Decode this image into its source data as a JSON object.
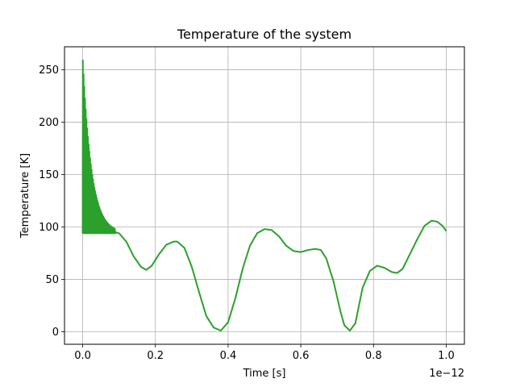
{
  "chart_data": {
    "type": "line",
    "title": "Temperature of the system",
    "xlabel": "Time [s]",
    "ylabel": "Temperature [K]",
    "x_offset_label": "1e−12",
    "xlim": [
      -0.05,
      1.05
    ],
    "ylim": [
      -12,
      272
    ],
    "x_ticks": [
      0.0,
      0.2,
      0.4,
      0.6,
      0.8,
      1.0
    ],
    "x_tick_labels": [
      "0.0",
      "0.2",
      "0.4",
      "0.6",
      "0.8",
      "1.0"
    ],
    "y_ticks": [
      0,
      50,
      100,
      150,
      200,
      250
    ],
    "y_tick_labels": [
      "0",
      "50",
      "100",
      "150",
      "200",
      "250"
    ],
    "grid": true,
    "series": [
      {
        "color": "#2ca02c",
        "spikes": {
          "baseline": 94,
          "x_start": 0.0,
          "x_end": 0.09,
          "count": 45,
          "peak_max": 259,
          "decay": 0.024
        },
        "x": [
          0.09,
          0.1,
          0.12,
          0.14,
          0.16,
          0.175,
          0.19,
          0.21,
          0.23,
          0.25,
          0.26,
          0.28,
          0.3,
          0.32,
          0.34,
          0.36,
          0.38,
          0.4,
          0.42,
          0.44,
          0.46,
          0.48,
          0.5,
          0.52,
          0.54,
          0.56,
          0.58,
          0.6,
          0.62,
          0.64,
          0.655,
          0.67,
          0.69,
          0.71,
          0.72,
          0.735,
          0.75,
          0.77,
          0.79,
          0.81,
          0.83,
          0.85,
          0.865,
          0.88,
          0.9,
          0.92,
          0.94,
          0.96,
          0.975,
          0.99,
          1.0
        ],
        "y": [
          95,
          94,
          86,
          72,
          62,
          59,
          63,
          74,
          83,
          86,
          86,
          80,
          62,
          38,
          15,
          4,
          1,
          9,
          32,
          60,
          82,
          94,
          98,
          97,
          91,
          82,
          77,
          76,
          78,
          79,
          78,
          70,
          48,
          18,
          6,
          1,
          8,
          42,
          58,
          63,
          61,
          57,
          56,
          60,
          74,
          88,
          101,
          106,
          105,
          101,
          96
        ]
      }
    ]
  }
}
